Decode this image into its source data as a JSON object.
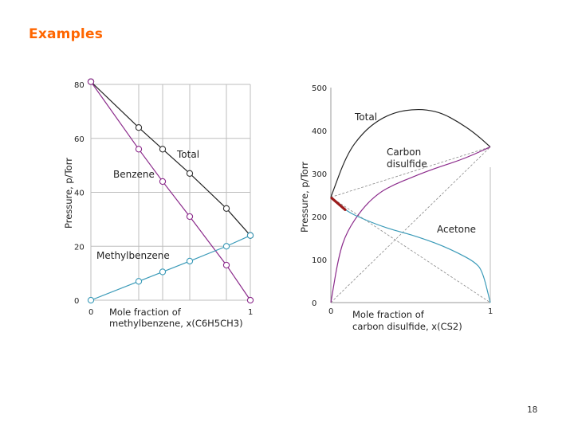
{
  "slide": {
    "title": "Examples",
    "page_number": "18"
  },
  "chart_data": [
    {
      "type": "line",
      "ylabel": "Pressure, p/Torr",
      "xlabel_line1": "Mole fraction of",
      "xlabel_line2": "methylbenzene, x(C6H5CH3)",
      "xlim": [
        0,
        1
      ],
      "ylim": [
        0,
        80
      ],
      "x_ticks": [
        "0",
        "1"
      ],
      "y_ticks": [
        {
          "value": 0,
          "label": "0"
        },
        {
          "value": 20,
          "label": "20"
        },
        {
          "value": 40,
          "label": "40"
        },
        {
          "value": 60,
          "label": "60"
        },
        {
          "value": 80,
          "label": "80"
        }
      ],
      "grid": true,
      "series": [
        {
          "name": "Total",
          "color": "#222222",
          "points": [
            [
              0,
              81
            ],
            [
              0.3,
              64
            ],
            [
              0.45,
              56
            ],
            [
              0.62,
              47
            ],
            [
              0.85,
              34
            ],
            [
              1,
              24
            ]
          ]
        },
        {
          "name": "Benzene",
          "color": "#8b2a8b",
          "points": [
            [
              0,
              81
            ],
            [
              0.3,
              56
            ],
            [
              0.45,
              44
            ],
            [
              0.62,
              31
            ],
            [
              0.85,
              13
            ],
            [
              1,
              0
            ]
          ]
        },
        {
          "name": "Methylbenzene",
          "color": "#3a9ab8",
          "points": [
            [
              0,
              0
            ],
            [
              0.3,
              7
            ],
            [
              0.45,
              10.5
            ],
            [
              0.62,
              14.5
            ],
            [
              0.85,
              20
            ],
            [
              1,
              24
            ]
          ]
        }
      ]
    },
    {
      "type": "line",
      "ylabel": "Pressure, p/Torr",
      "xlabel_line1": "Mole fraction of",
      "xlabel_line2": "carbon disulfide, x(CS2)",
      "xlim": [
        0,
        1
      ],
      "ylim": [
        0,
        500
      ],
      "x_ticks": [
        "0",
        "1"
      ],
      "y_ticks": [
        {
          "value": 0,
          "label": "0"
        },
        {
          "value": 100,
          "label": "100"
        },
        {
          "value": 200,
          "label": "200"
        },
        {
          "value": 300,
          "label": "300"
        },
        {
          "value": 400,
          "label": "400"
        },
        {
          "value": 500,
          "label": "500"
        }
      ],
      "grid": false,
      "series": [
        {
          "name": "Total",
          "color": "#222222",
          "points": [
            [
              0,
              245
            ],
            [
              0.1,
              345
            ],
            [
              0.2,
              395
            ],
            [
              0.3,
              425
            ],
            [
              0.4,
              442
            ],
            [
              0.5,
              449
            ],
            [
              0.6,
              449
            ],
            [
              0.7,
              440
            ],
            [
              0.8,
              420
            ],
            [
              0.9,
              395
            ],
            [
              1,
              362
            ]
          ]
        },
        {
          "name": "Carbon disulfide",
          "color": "#8b2a8b",
          "points": [
            [
              0,
              0
            ],
            [
              0.05,
              110
            ],
            [
              0.1,
              165
            ],
            [
              0.2,
              220
            ],
            [
              0.3,
              255
            ],
            [
              0.4,
              275
            ],
            [
              0.5,
              290
            ],
            [
              0.6,
              305
            ],
            [
              0.7,
              318
            ],
            [
              0.8,
              330
            ],
            [
              0.9,
              345
            ],
            [
              1,
              362
            ]
          ]
        },
        {
          "name": "Acetone",
          "color": "#3a9ab8",
          "points": [
            [
              0,
              245
            ],
            [
              0.1,
              212
            ],
            [
              0.2,
              195
            ],
            [
              0.3,
              180
            ],
            [
              0.4,
              168
            ],
            [
              0.5,
              158
            ],
            [
              0.6,
              146
            ],
            [
              0.7,
              132
            ],
            [
              0.8,
              115
            ],
            [
              0.9,
              95
            ],
            [
              0.95,
              75
            ],
            [
              1,
              0
            ]
          ]
        }
      ]
    }
  ]
}
